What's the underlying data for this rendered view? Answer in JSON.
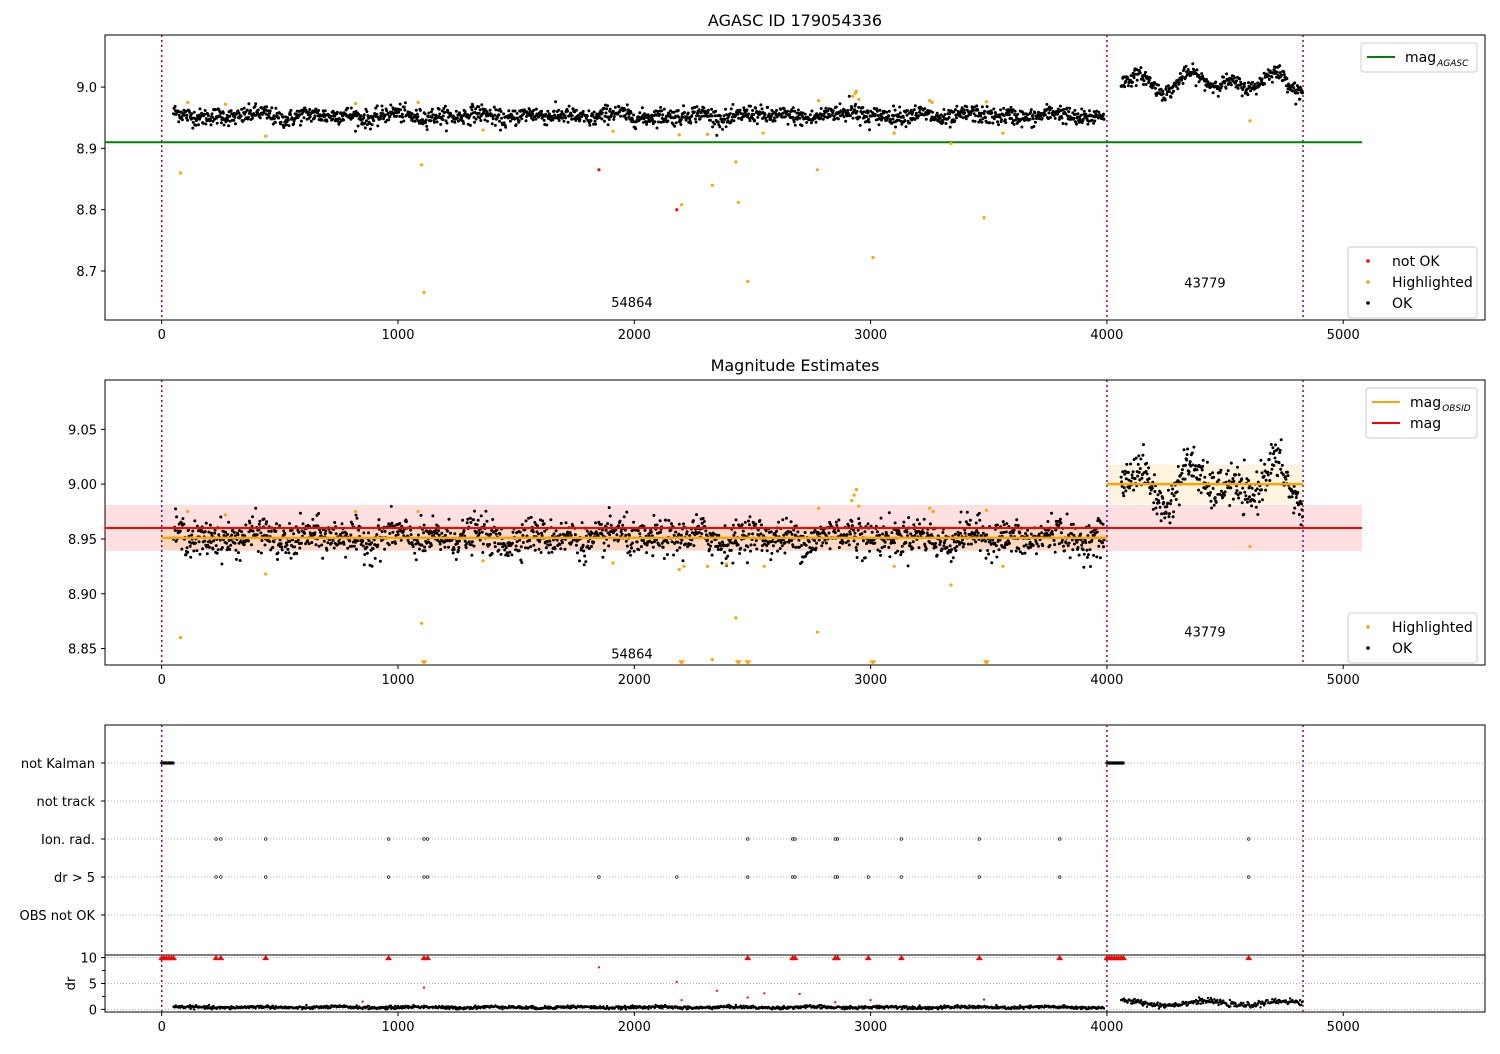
{
  "chart_data": [
    {
      "type": "scatter",
      "title": "AGASC ID 179054336",
      "xlim": [
        -240,
        5600
      ],
      "ylim": [
        8.62,
        9.085
      ],
      "xticks": [
        0,
        1000,
        2000,
        3000,
        4000,
        5000
      ],
      "yticks": [
        8.7,
        8.8,
        8.9,
        9.0
      ],
      "obsid_boundaries": [
        0,
        4000,
        4830
      ],
      "obsid_labels": [
        {
          "text": "54864",
          "x": 1990,
          "y": 8.641
        },
        {
          "text": "43779",
          "x": 4415,
          "y": 8.673
        }
      ],
      "hline": {
        "name": "mag",
        "sub": "AGASC",
        "y": 8.91,
        "x_range": [
          -240,
          5080
        ],
        "color": "#008000"
      },
      "legend_top": [
        {
          "name": "mag",
          "sub": "AGASC",
          "color": "#008000"
        }
      ],
      "legend_bottom": [
        {
          "name": "not OK",
          "color": "#ff0000"
        },
        {
          "name": "Highlighted",
          "color": "#ffa500"
        },
        {
          "name": "OK",
          "color": "#000000"
        }
      ],
      "series": [
        {
          "name": "OK",
          "color": "#000000",
          "segments": [
            {
              "x_range": [
                50,
                3990
              ],
              "base": 8.953,
              "amp": 0.006,
              "noise": 0.007
            },
            {
              "x_range": [
                4060,
                4830
              ],
              "base": 9.008,
              "amp": 0.018,
              "noise": 0.006
            }
          ],
          "bump": {
            "x": 2935,
            "dy": 0.025
          }
        },
        {
          "name": "Highlighted",
          "color": "#ffa500",
          "points": [
            [
              80,
              8.86
            ],
            [
              110,
              8.975
            ],
            [
              270,
              8.972
            ],
            [
              440,
              8.92
            ],
            [
              820,
              8.973
            ],
            [
              1085,
              8.975
            ],
            [
              1100,
              8.873
            ],
            [
              1110,
              8.665
            ],
            [
              1360,
              8.93
            ],
            [
              1910,
              8.928
            ],
            [
              2190,
              8.922
            ],
            [
              2200,
              8.808
            ],
            [
              2330,
              8.84
            ],
            [
              2310,
              8.923
            ],
            [
              2430,
              8.878
            ],
            [
              2440,
              8.812
            ],
            [
              2480,
              8.683
            ],
            [
              2545,
              8.925
            ],
            [
              2775,
              8.865
            ],
            [
              2780,
              8.978
            ],
            [
              2925,
              8.985
            ],
            [
              2935,
              8.99
            ],
            [
              2940,
              8.993
            ],
            [
              2950,
              8.98
            ],
            [
              3010,
              8.722
            ],
            [
              3100,
              8.925
            ],
            [
              3250,
              8.978
            ],
            [
              3260,
              8.975
            ],
            [
              3340,
              8.908
            ],
            [
              3480,
              8.787
            ],
            [
              3490,
              8.976
            ],
            [
              3560,
              8.925
            ],
            [
              4605,
              8.945
            ]
          ]
        },
        {
          "name": "not OK",
          "color": "#ff0000",
          "points": [
            [
              1850,
              8.865
            ],
            [
              2180,
              8.8
            ]
          ]
        }
      ]
    },
    {
      "type": "scatter",
      "title": "Magnitude Estimates",
      "xlim": [
        -240,
        5600
      ],
      "ylim": [
        8.835,
        9.095
      ],
      "xticks": [
        0,
        1000,
        2000,
        3000,
        4000,
        5000
      ],
      "yticks": [
        8.85,
        8.9,
        8.95,
        9.0,
        9.05
      ],
      "obsid_boundaries": [
        0,
        4000,
        4830
      ],
      "obsid_labels": [
        {
          "text": "54864",
          "x": 1990,
          "y": 8.841
        },
        {
          "text": "43779",
          "x": 4415,
          "y": 8.861
        }
      ],
      "mag_line": {
        "name": "mag",
        "y": 8.96,
        "band": [
          8.939,
          8.981
        ],
        "x_range": [
          -240,
          5080
        ],
        "color": "#ff0000"
      },
      "obsid_lines": [
        {
          "x_range": [
            0,
            4000
          ],
          "y": 8.951,
          "band": [
            8.94,
            8.962
          ]
        },
        {
          "x_range": [
            4000,
            4830
          ],
          "y": 9.0,
          "band": [
            8.982,
            9.018
          ]
        }
      ],
      "legend_top": [
        {
          "name": "mag",
          "sub": "OBSID",
          "color": "#ffa500"
        },
        {
          "name": "mag",
          "sub": "",
          "color": "#ff0000"
        }
      ],
      "legend_bottom": [
        {
          "name": "Highlighted",
          "color": "#ffa500"
        },
        {
          "name": "OK",
          "color": "#000000"
        }
      ],
      "series": [
        {
          "name": "OK",
          "color": "#000000",
          "segments": [
            {
              "x_range": [
                50,
                3990
              ],
              "base": 8.951,
              "amp": 0.006,
              "noise": 0.008
            },
            {
              "x_range": [
                4060,
                4830
              ],
              "base": 9.0,
              "amp": 0.022,
              "noise": 0.009
            }
          ],
          "bump": {
            "x": 2935,
            "dy": 0.015
          }
        },
        {
          "name": "Highlighted",
          "color": "#ffa500",
          "points": [
            [
              80,
              8.86
            ],
            [
              110,
              8.975
            ],
            [
              270,
              8.972
            ],
            [
              440,
              8.918
            ],
            [
              820,
              8.975
            ],
            [
              1085,
              8.975
            ],
            [
              1100,
              8.873
            ],
            [
              1360,
              8.93
            ],
            [
              1910,
              8.928
            ],
            [
              2190,
              8.922
            ],
            [
              2210,
              8.925
            ],
            [
              2310,
              8.925
            ],
            [
              2330,
              8.84
            ],
            [
              2390,
              8.927
            ],
            [
              2430,
              8.878
            ],
            [
              2550,
              8.925
            ],
            [
              2775,
              8.865
            ],
            [
              2780,
              8.978
            ],
            [
              2920,
              8.985
            ],
            [
              2930,
              8.99
            ],
            [
              2940,
              8.995
            ],
            [
              2950,
              8.98
            ],
            [
              3100,
              8.925
            ],
            [
              3250,
              8.978
            ],
            [
              3265,
              8.975
            ],
            [
              3340,
              8.908
            ],
            [
              3490,
              8.976
            ],
            [
              3560,
              8.925
            ],
            [
              4605,
              8.943
            ]
          ]
        },
        {
          "name": "Highlighted (out of range)",
          "color": "#ffa500",
          "marker": "triangle-down",
          "y": 8.837,
          "x": [
            1110,
            2200,
            2440,
            2480,
            3010,
            3490
          ]
        }
      ]
    },
    {
      "type": "scatter",
      "title": "",
      "xlim": [
        -240,
        5600
      ],
      "categories": [
        "not Kalman",
        "not track",
        "Ion. rad.",
        "dr > 5",
        "OBS not OK"
      ],
      "obsid_boundaries": [
        0,
        4000,
        4830
      ],
      "flags": {
        "not Kalman": [
          [
            0,
            50
          ],
          [
            4000,
            4070
          ]
        ],
        "not track": [],
        "Ion. rad.": [
          230,
          250,
          440,
          960,
          1110,
          1125,
          2480,
          2670,
          2680,
          2850,
          2860,
          3130,
          3460,
          3800,
          4600
        ],
        "dr > 5": [
          230,
          250,
          440,
          960,
          1110,
          1125,
          1850,
          2180,
          2480,
          2670,
          2680,
          2850,
          2860,
          2990,
          3130,
          3460,
          3800,
          4600
        ],
        "OBS not OK": []
      }
    },
    {
      "type": "scatter",
      "ylabel": "dr",
      "xlim": [
        -240,
        5600
      ],
      "ylim": [
        -0.5,
        10.5
      ],
      "xticks": [
        0,
        1000,
        2000,
        3000,
        4000,
        5000
      ],
      "yticks": [
        0,
        5,
        10
      ],
      "obsid_boundaries": [
        0,
        4000,
        4830
      ],
      "series": [
        {
          "name": "dr",
          "color": "#000000",
          "segments": [
            {
              "x_range": [
                50,
                3990
              ],
              "base": 0.4,
              "amp": 0.1,
              "noise": 0.15
            },
            {
              "x_range": [
                4060,
                4830
              ],
              "base": 1.2,
              "amp": 0.4,
              "noise": 0.25
            }
          ]
        },
        {
          "name": "dr clipped",
          "color": "#ff0000",
          "marker": "triangle-up",
          "y": 10,
          "x": [
            0,
            10,
            20,
            30,
            40,
            50,
            230,
            250,
            440,
            960,
            1110,
            1125,
            2480,
            2670,
            2680,
            2850,
            2860,
            2990,
            3130,
            3460,
            3800,
            4000,
            4010,
            4020,
            4030,
            4040,
            4050,
            4060,
            4070,
            4600
          ]
        },
        {
          "name": "dr outliers",
          "color": "#ff0000",
          "points": [
            [
              1850,
              8.1
            ],
            [
              2180,
              5.3
            ],
            [
              1110,
              4.2
            ],
            [
              2350,
              3.6
            ],
            [
              2550,
              3.1
            ],
            [
              2700,
              3.0
            ],
            [
              2480,
              2.3
            ],
            [
              2200,
              1.8
            ],
            [
              3000,
              1.8
            ],
            [
              3480,
              1.9
            ],
            [
              850,
              1.5
            ],
            [
              2850,
              1.4
            ]
          ]
        }
      ]
    }
  ]
}
